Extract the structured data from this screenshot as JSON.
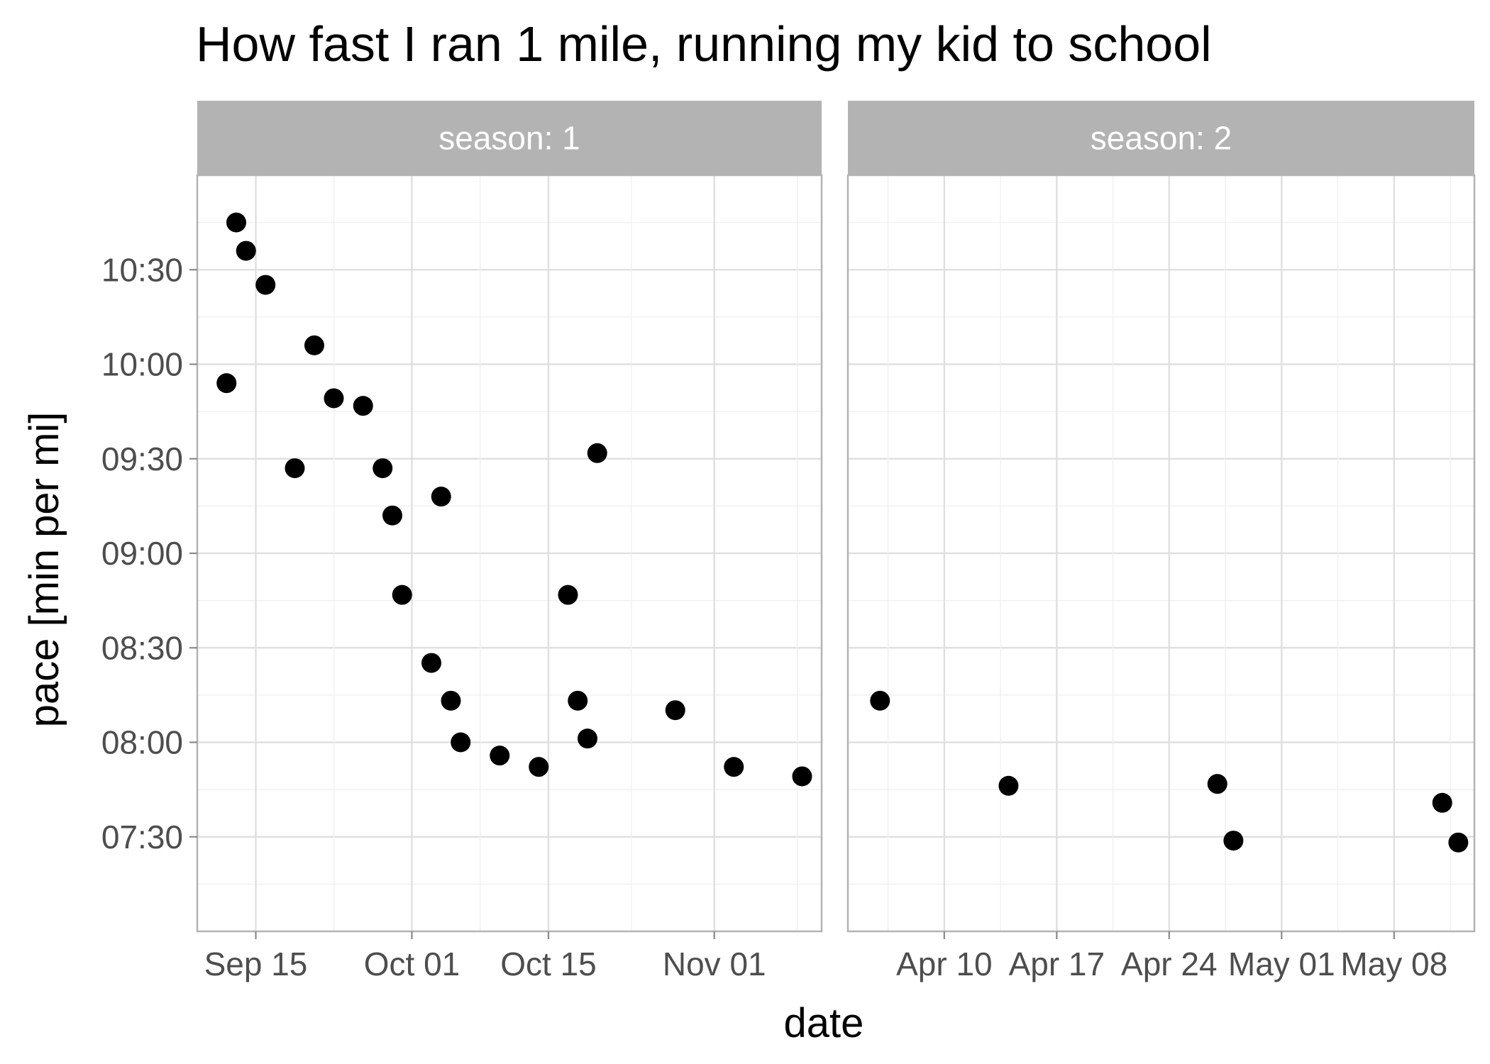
{
  "chart_data": {
    "type": "scatter",
    "title": "How fast I ran 1 mile, running my kid to school",
    "xlabel": "date",
    "ylabel": "pace [min per mi]",
    "y_unit": "minutes per mile",
    "y_ticks": [
      "07:30",
      "08:00",
      "08:30",
      "09:00",
      "09:30",
      "10:00",
      "10:30"
    ],
    "y_tick_values": [
      7.5,
      8.0,
      8.5,
      9.0,
      9.5,
      10.0,
      10.5
    ],
    "ylim": [
      7.0,
      11.0
    ],
    "grid": true,
    "point_color": "#000000",
    "strip_color": "#b3b3b3",
    "facets": [
      {
        "label": "season: 1",
        "x_ticks": [
          "Sep 15",
          "Oct 01",
          "Oct 15",
          "Nov 01"
        ],
        "x_tick_dates": [
          "2019-09-15",
          "2019-10-01",
          "2019-10-15",
          "2019-11-01"
        ],
        "xlim": [
          "2019-09-09",
          "2019-11-12"
        ],
        "points": [
          {
            "date": "2019-09-12",
            "pace": 9.9
          },
          {
            "date": "2019-09-13",
            "pace": 10.75
          },
          {
            "date": "2019-09-14",
            "pace": 10.6
          },
          {
            "date": "2019-09-16",
            "pace": 10.42
          },
          {
            "date": "2019-09-19",
            "pace": 9.45
          },
          {
            "date": "2019-09-21",
            "pace": 10.1
          },
          {
            "date": "2019-09-23",
            "pace": 9.82
          },
          {
            "date": "2019-09-26",
            "pace": 9.78
          },
          {
            "date": "2019-09-28",
            "pace": 9.45
          },
          {
            "date": "2019-09-29",
            "pace": 9.2
          },
          {
            "date": "2019-09-30",
            "pace": 8.78
          },
          {
            "date": "2019-10-03",
            "pace": 8.42
          },
          {
            "date": "2019-10-04",
            "pace": 9.3
          },
          {
            "date": "2019-10-05",
            "pace": 8.22
          },
          {
            "date": "2019-10-06",
            "pace": 8.0
          },
          {
            "date": "2019-10-10",
            "pace": 7.93
          },
          {
            "date": "2019-10-14",
            "pace": 7.87
          },
          {
            "date": "2019-10-17",
            "pace": 8.78
          },
          {
            "date": "2019-10-18",
            "pace": 8.22
          },
          {
            "date": "2019-10-19",
            "pace": 8.02
          },
          {
            "date": "2019-10-20",
            "pace": 9.53
          },
          {
            "date": "2019-10-28",
            "pace": 8.17
          },
          {
            "date": "2019-11-03",
            "pace": 7.87
          },
          {
            "date": "2019-11-10",
            "pace": 7.82
          }
        ]
      },
      {
        "label": "season: 2",
        "x_ticks": [
          "Apr 10",
          "Apr 17",
          "Apr 24",
          "May 01",
          "May 08"
        ],
        "x_tick_dates": [
          "2020-04-10",
          "2020-04-17",
          "2020-04-24",
          "2020-05-01",
          "2020-05-08"
        ],
        "xlim": [
          "2020-04-04",
          "2020-05-13"
        ],
        "points": [
          {
            "date": "2020-04-06",
            "pace": 8.22
          },
          {
            "date": "2020-04-14",
            "pace": 7.77
          },
          {
            "date": "2020-04-27",
            "pace": 7.78
          },
          {
            "date": "2020-04-28",
            "pace": 7.48
          },
          {
            "date": "2020-05-11",
            "pace": 7.68
          },
          {
            "date": "2020-05-12",
            "pace": 7.47
          }
        ]
      }
    ]
  }
}
